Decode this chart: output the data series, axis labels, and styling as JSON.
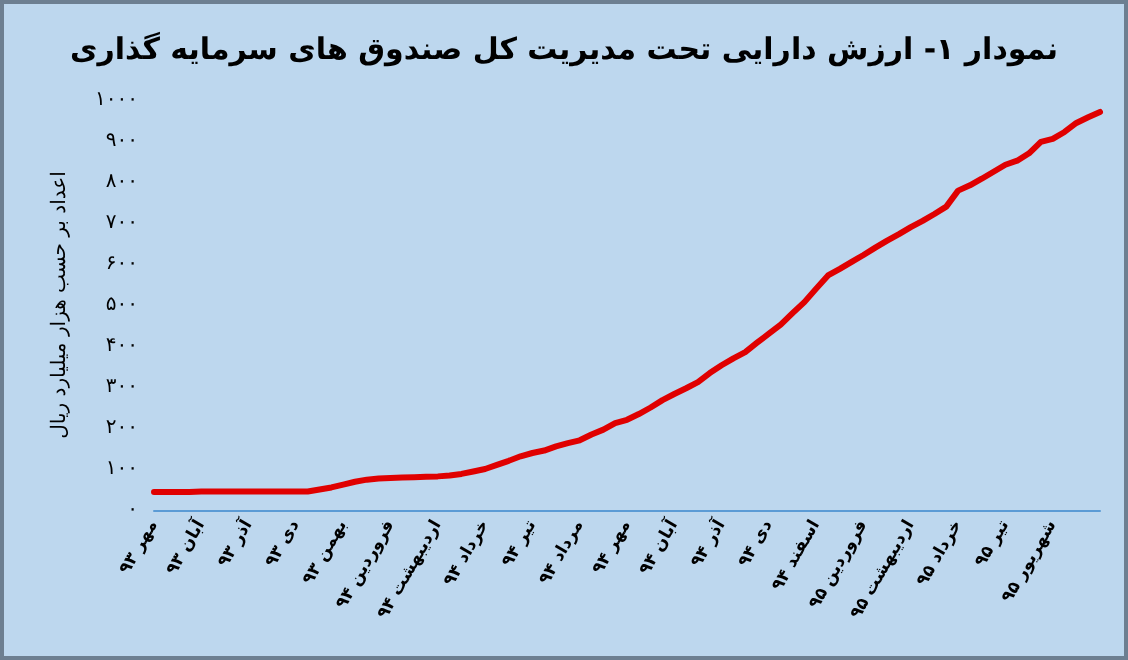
{
  "chart_data": {
    "type": "line",
    "title": "نمودار ۱- ارزش دارایی تحت مدیریت کل صندوق های سرمایه گذاری",
    "ylabel": "اعداد بر حسب هزار میلیارد ریال",
    "categories": [
      "مهر ۹۳",
      null,
      null,
      null,
      "آبان ۹۳",
      null,
      null,
      null,
      "آذر ۹۳",
      null,
      null,
      null,
      "دی ۹۳",
      null,
      null,
      null,
      "بهمن ۹۳",
      null,
      null,
      null,
      "فروردین ۹۴",
      null,
      null,
      null,
      "اردیبهشت ۹۴",
      null,
      null,
      null,
      "خرداد ۹۴",
      null,
      null,
      null,
      "تیر ۹۴",
      null,
      null,
      null,
      "مرداد ۹۴",
      null,
      null,
      null,
      "مهر ۹۴",
      null,
      null,
      null,
      "آبان ۹۴",
      null,
      null,
      null,
      "آذر ۹۴",
      null,
      null,
      null,
      "دی ۹۴",
      null,
      null,
      null,
      "اسفند ۹۴",
      null,
      null,
      null,
      "فروردین ۹۵",
      null,
      null,
      null,
      "اردیبهشت ۹۵",
      null,
      null,
      null,
      "خرداد ۹۵",
      null,
      null,
      null,
      "تیر ۹۵",
      null,
      null,
      null,
      "شهریور ۹۵",
      null,
      null,
      null,
      null
    ],
    "series": [
      {
        "color": "#e00000",
        "values": [
          44,
          44,
          44,
          44,
          45,
          45,
          45,
          45,
          45,
          45,
          45,
          45,
          45,
          45,
          50,
          55,
          62,
          69,
          74,
          77,
          78,
          79,
          80,
          81,
          82,
          84,
          88,
          94,
          100,
          110,
          120,
          131,
          139,
          145,
          155,
          163,
          170,
          184,
          196,
          212,
          220,
          234,
          250,
          268,
          283,
          297,
          312,
          334,
          353,
          370,
          385,
          408,
          430,
          452,
          480,
          507,
          540,
          572,
          588,
          605,
          622,
          640,
          657,
          673,
          690,
          705,
          722,
          740,
          779,
          792,
          808,
          825,
          842,
          852,
          870,
          898,
          905,
          922,
          944,
          958,
          971
        ]
      }
    ],
    "ylim": [
      0,
      1000
    ],
    "yticks": [
      {
        "value": 0,
        "label": "۰"
      },
      {
        "value": 100,
        "label": "۱۰۰"
      },
      {
        "value": 200,
        "label": "۲۰۰"
      },
      {
        "value": 300,
        "label": "۳۰۰"
      },
      {
        "value": 400,
        "label": "۴۰۰"
      },
      {
        "value": 500,
        "label": "۵۰۰"
      },
      {
        "value": 600,
        "label": "۶۰۰"
      },
      {
        "value": 700,
        "label": "۷۰۰"
      },
      {
        "value": 800,
        "label": "۸۰۰"
      },
      {
        "value": 900,
        "label": "۹۰۰"
      },
      {
        "value": 1000,
        "label": "۱۰۰۰"
      }
    ],
    "grid": false,
    "marker": "none",
    "line_style": "solid"
  }
}
